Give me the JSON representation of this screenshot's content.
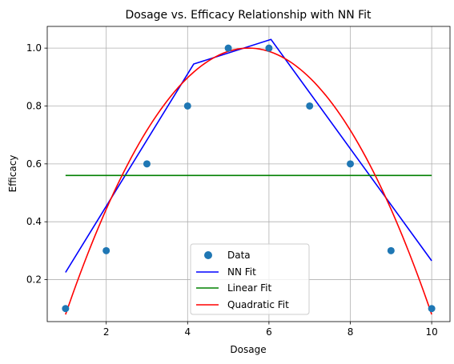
{
  "chart_data": {
    "type": "line",
    "title": "Dosage vs. Efficacy Relationship with NN Fit",
    "xlabel": "Dosage",
    "ylabel": "Efficacy",
    "xlim": [
      0.55,
      10.45
    ],
    "ylim": [
      0.055,
      1.075
    ],
    "xticks": [
      2,
      4,
      6,
      8,
      10
    ],
    "yticks": [
      0.2,
      0.4,
      0.6,
      0.8,
      1.0
    ],
    "xtick_labels": [
      "2",
      "4",
      "6",
      "8",
      "10"
    ],
    "ytick_labels": [
      "0.2",
      "0.4",
      "0.6",
      "0.8",
      "1.0"
    ],
    "grid": true,
    "legend_position": "lower-center",
    "data_points": {
      "name": "Data",
      "color": "#1f77b4",
      "x": [
        1,
        2,
        3,
        4,
        5,
        6,
        7,
        8,
        9,
        10
      ],
      "y": [
        0.1,
        0.3,
        0.6,
        0.8,
        1.0,
        1.0,
        0.8,
        0.6,
        0.3,
        0.1
      ]
    },
    "lines": [
      {
        "name": "NN Fit",
        "color": "#0000ff",
        "x": [
          1,
          4.15,
          6.05,
          10
        ],
        "y": [
          0.225,
          0.945,
          1.03,
          0.265
        ]
      },
      {
        "name": "Linear Fit",
        "color": "#008000",
        "x": [
          1,
          10
        ],
        "y": [
          0.56,
          0.56
        ]
      },
      {
        "name": "Quadratic Fit",
        "color": "#ff0000",
        "quadratic": {
          "a": -0.04545,
          "b": 0.5,
          "c": -0.37507
        },
        "x_range": [
          1,
          10
        ]
      }
    ]
  }
}
